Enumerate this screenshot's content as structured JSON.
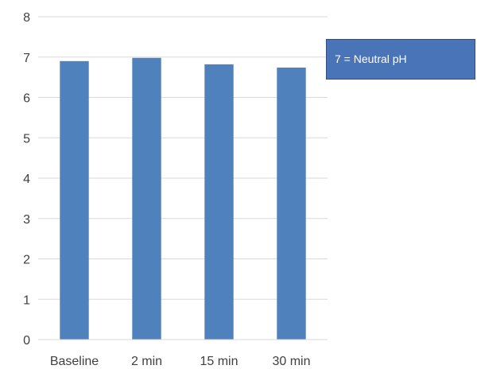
{
  "chart_data": {
    "type": "bar",
    "categories": [
      "Baseline",
      "2 min",
      "15 min",
      "30 min"
    ],
    "values": [
      6.9,
      6.98,
      6.82,
      6.74
    ],
    "ylim": [
      0,
      8
    ],
    "yticks": [
      0,
      1,
      2,
      3,
      4,
      5,
      6,
      7,
      8
    ],
    "grid": true,
    "bar_color": "#4f81bd",
    "gridline_color": "#d9d9d9",
    "annotation": "7 = Neutral pH"
  }
}
